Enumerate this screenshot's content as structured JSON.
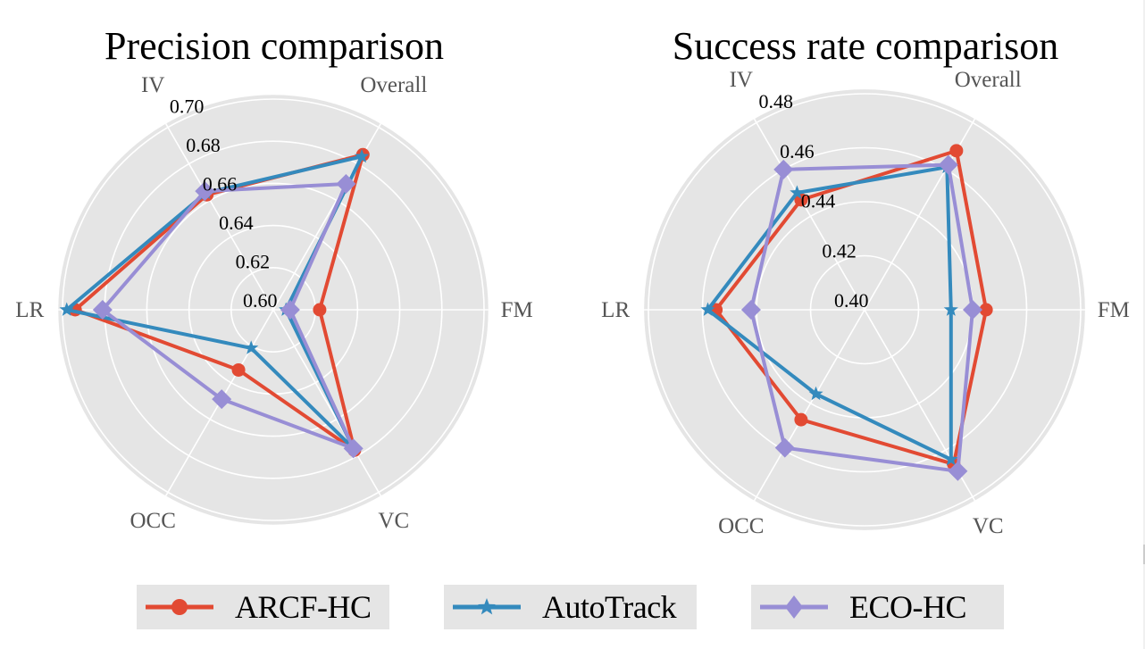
{
  "chart_data": [
    {
      "type": "radar",
      "title": "Precision comparison",
      "categories": [
        "Overall",
        "IV",
        "LR",
        "OCC",
        "VC",
        "FM"
      ],
      "category_angles_deg": [
        60,
        120,
        180,
        240,
        300,
        0
      ],
      "rlim": [
        0.6,
        0.7
      ],
      "rticks": [
        0.6,
        0.62,
        0.64,
        0.66,
        0.68,
        0.7
      ],
      "rtick_labels": [
        "0.60",
        "0.62",
        "0.64",
        "0.66",
        "0.68",
        "0.70"
      ],
      "grid": true,
      "series": [
        {
          "name": "ARCF-HC",
          "marker": "circle",
          "color": "#e24a33",
          "values": [
            0.685,
            0.663,
            0.694,
            0.633,
            0.677,
            0.622
          ]
        },
        {
          "name": "AutoTrack",
          "marker": "star",
          "color": "#348abd",
          "values": [
            0.684,
            0.664,
            0.698,
            0.621,
            0.676,
            0.606
          ]
        },
        {
          "name": "ECO-HC",
          "marker": "diamond",
          "color": "#988ed5",
          "values": [
            0.669,
            0.665,
            0.681,
            0.649,
            0.676,
            0.608
          ]
        }
      ]
    },
    {
      "type": "radar",
      "title": "Success rate comparison",
      "categories": [
        "Overall",
        "IV",
        "LR",
        "OCC",
        "VC",
        "FM"
      ],
      "category_angles_deg": [
        60,
        120,
        180,
        240,
        300,
        0
      ],
      "rlim": [
        0.4,
        0.48
      ],
      "rticks": [
        0.4,
        0.42,
        0.44,
        0.46,
        0.48
      ],
      "rtick_labels": [
        "0.40",
        "0.42",
        "0.44",
        "0.46",
        "0.48"
      ],
      "grid": true,
      "series": [
        {
          "name": "ARCF-HC",
          "marker": "circle",
          "color": "#e24a33",
          "values": [
            0.468,
            0.447,
            0.455,
            0.447,
            0.466,
            0.445
          ]
        },
        {
          "name": "AutoTrack",
          "marker": "star",
          "color": "#348abd",
          "values": [
            0.461,
            0.45,
            0.458,
            0.436,
            0.464,
            0.432
          ]
        },
        {
          "name": "ECO-HC",
          "marker": "diamond",
          "color": "#988ed5",
          "values": [
            0.462,
            0.46,
            0.442,
            0.459,
            0.469,
            0.44
          ]
        }
      ]
    }
  ],
  "legend": {
    "placement": "bottom",
    "items": [
      {
        "label": "ARCF-HC",
        "marker": "circle",
        "color": "#e24a33"
      },
      {
        "label": "AutoTrack",
        "marker": "star",
        "color": "#348abd"
      },
      {
        "label": "ECO-HC",
        "marker": "diamond",
        "color": "#988ed5"
      }
    ]
  },
  "colors": {
    "plot_background": "#e5e5e5",
    "grid": "#ffffff",
    "category_label": "#555555"
  }
}
